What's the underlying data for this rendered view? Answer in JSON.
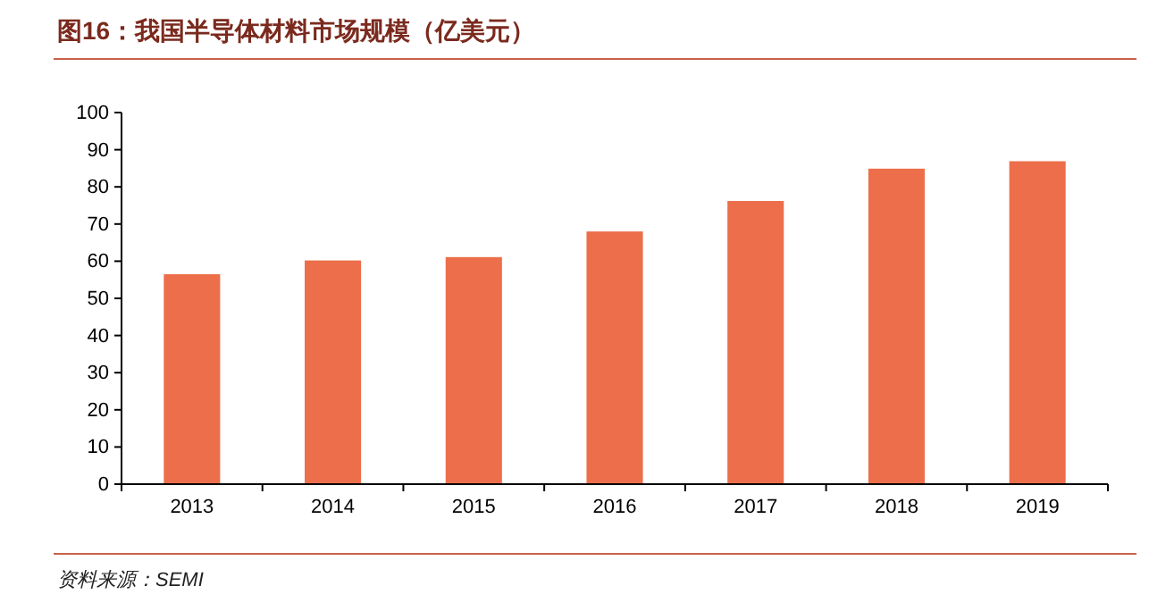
{
  "chart_data": {
    "type": "bar",
    "title": "图16：我国半导体材料市场规模（亿美元）",
    "categories": [
      "2013",
      "2014",
      "2015",
      "2016",
      "2017",
      "2018",
      "2019"
    ],
    "values": [
      56.5,
      60.2,
      61.1,
      68,
      76.2,
      84.9,
      86.9
    ],
    "color": "#ec6e4a",
    "ylim": [
      0,
      100
    ],
    "yticks": [
      0,
      10,
      20,
      30,
      40,
      50,
      60,
      70,
      80,
      90,
      100
    ],
    "grid": false,
    "annotations": [
      "资料来源：SEMI"
    ]
  }
}
